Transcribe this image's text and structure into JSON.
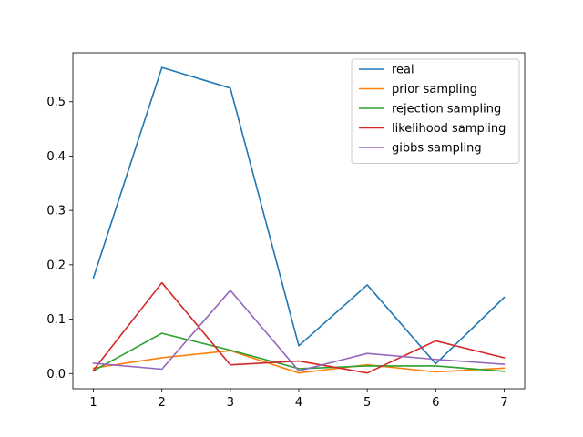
{
  "chart_data": {
    "type": "line",
    "title": "",
    "xlabel": "",
    "ylabel": "",
    "x": [
      1,
      2,
      3,
      4,
      5,
      6,
      7
    ],
    "xlim": [
      0.7,
      7.3
    ],
    "ylim": [
      -0.028,
      0.59
    ],
    "xticks": [
      1,
      2,
      3,
      4,
      5,
      6,
      7
    ],
    "yticks": [
      0.0,
      0.1,
      0.2,
      0.3,
      0.4,
      0.5
    ],
    "ytick_labels": [
      "0.0",
      "0.1",
      "0.2",
      "0.3",
      "0.4",
      "0.5"
    ],
    "grid": false,
    "legend_position": "top-right",
    "series": [
      {
        "name": "real",
        "color": "#1f77b4",
        "values": [
          0.176,
          0.563,
          0.525,
          0.051,
          0.163,
          0.018,
          0.14
        ]
      },
      {
        "name": "prior sampling",
        "color": "#ff7f0e",
        "values": [
          0.01,
          0.029,
          0.042,
          0.001,
          0.016,
          0.003,
          0.01
        ]
      },
      {
        "name": "rejection sampling",
        "color": "#2ca02c",
        "values": [
          0.005,
          0.074,
          0.043,
          0.009,
          0.014,
          0.014,
          0.004
        ]
      },
      {
        "name": "likelihood sampling",
        "color": "#d62728",
        "values": [
          0.006,
          0.167,
          0.016,
          0.023,
          0.001,
          0.06,
          0.029
        ]
      },
      {
        "name": "gibbs sampling",
        "color": "#9467bd",
        "values": [
          0.019,
          0.008,
          0.153,
          0.005,
          0.037,
          0.026,
          0.017
        ]
      }
    ]
  }
}
